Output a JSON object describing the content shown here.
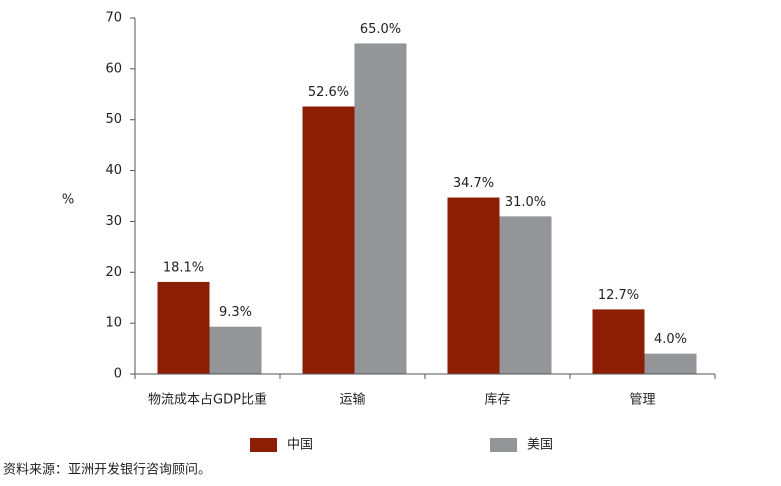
{
  "chart_data": {
    "type": "bar",
    "y_label": "%",
    "categories": [
      "物流成本占GDP比重",
      "运输",
      "库存",
      "管理"
    ],
    "series": [
      {
        "name": "中国",
        "color": "#8b1e03",
        "values": [
          18.1,
          52.6,
          34.7,
          12.7
        ],
        "value_labels": [
          "18.1%",
          "52.6%",
          "34.7%",
          "12.7%"
        ]
      },
      {
        "name": "美国",
        "color": "#939598",
        "values": [
          9.3,
          65.0,
          31.0,
          4.0
        ],
        "value_labels": [
          "9.3%",
          "65.0%",
          "31.0%",
          "4.0%"
        ]
      }
    ],
    "ylim": [
      0,
      70
    ],
    "yticks": [
      0,
      10,
      20,
      30,
      40,
      50,
      60,
      70
    ],
    "source": "资料来源：亚洲开发银行咨询顾问。"
  }
}
